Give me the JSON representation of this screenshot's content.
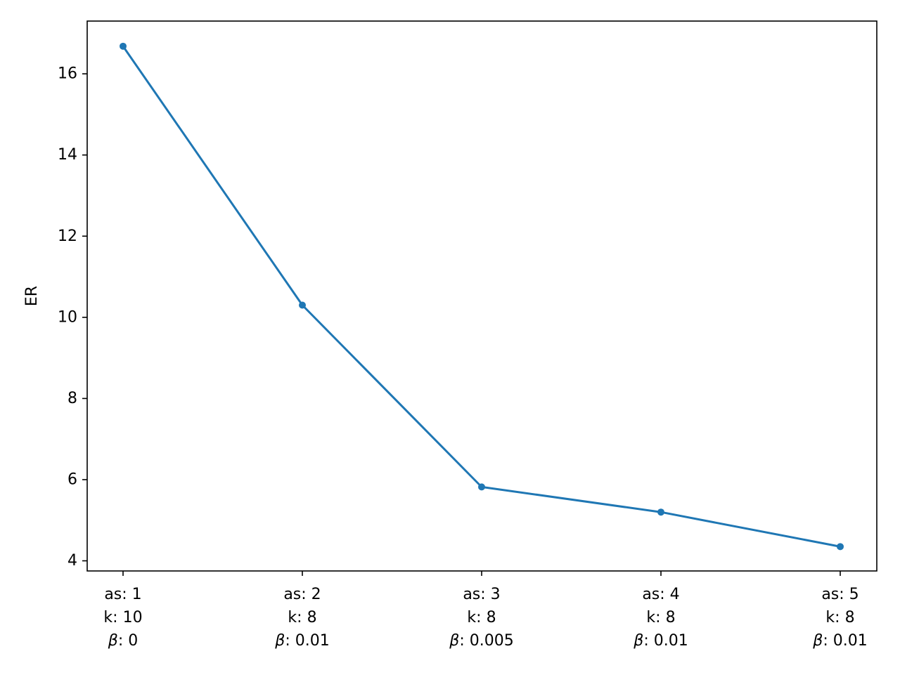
{
  "chart_data": {
    "type": "line",
    "title": "",
    "xlabel": "",
    "ylabel": "ER",
    "categories": [
      [
        "as: 1",
        "k: 10",
        "β: 0"
      ],
      [
        "as: 2",
        "k: 8",
        "β: 0.01"
      ],
      [
        "as: 3",
        "k: 8",
        "β: 0.005"
      ],
      [
        "as: 4",
        "k: 8",
        "β: 0.01"
      ],
      [
        "as: 5",
        "k: 8",
        "β: 0.01"
      ]
    ],
    "series": [
      {
        "values": [
          16.68,
          10.3,
          5.82,
          5.2,
          4.35
        ],
        "color": "#1f77b4",
        "marker": "circle"
      }
    ],
    "ylim": [
      3.75,
      17.3
    ],
    "yticks": [
      4,
      6,
      8,
      10,
      12,
      14,
      16
    ],
    "grid": false,
    "legend": "none"
  }
}
